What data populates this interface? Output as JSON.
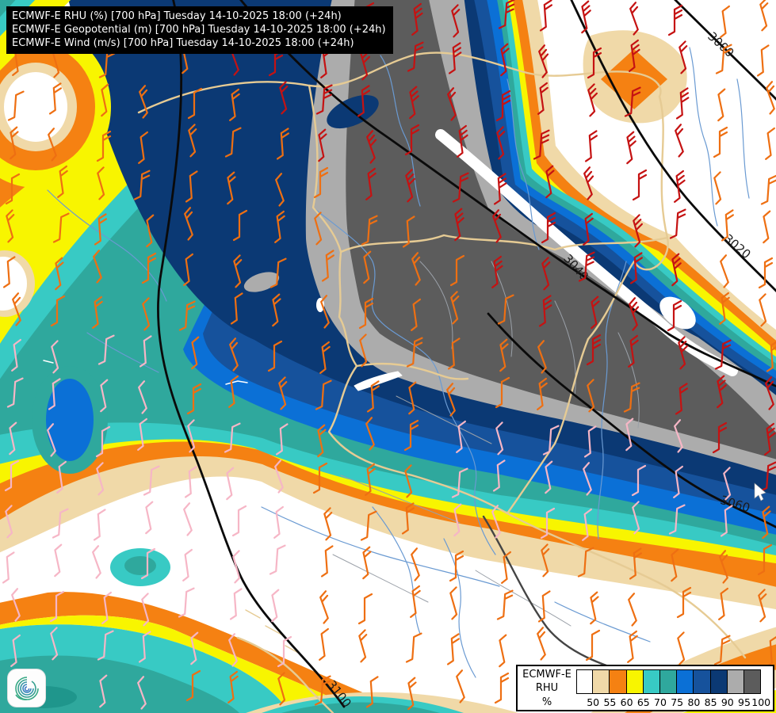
{
  "header": {
    "lines": [
      "ECMWF-E RHU (%) [700 hPa] Tuesday 14-10-2025 18:00 (+24h)",
      "ECMWF-E Geopotential (m) [700 hPa] Tuesday 14-10-2025 18:00 (+24h)",
      "ECMWF-E Wind (m/s) [700 hPa] Tuesday 14-10-2025 18:00 (+24h)"
    ]
  },
  "legend": {
    "title_lines": [
      "ECMWF-E",
      "RHU",
      "%"
    ],
    "tick_labels": [
      "50",
      "55",
      "60",
      "65",
      "70",
      "75",
      "80",
      "85",
      "90",
      "95",
      "100"
    ],
    "swatch_colors": [
      "#FFFFFF",
      "#F0D9A8",
      "#F58112",
      "#F8F500",
      "#38CAC4",
      "#2FA89D",
      "#0B70D6",
      "#16529C",
      "#0B3974",
      "#ACACAC",
      "#5C5C5C"
    ]
  },
  "contours": {
    "labels": [
      "3000",
      "3020",
      "3040",
      "3060",
      "3100"
    ]
  },
  "palette": {
    "white": "#FFFFFF",
    "tan": "#F0D9A8",
    "orange": "#F58112",
    "yellow": "#F8F500",
    "cyan": "#38CAC4",
    "teal": "#2FA89D",
    "tealdark": "#1F968C",
    "blue": "#0B70D6",
    "medblue": "#16529C",
    "navy": "#0B3974",
    "lgray": "#ACACAC",
    "dgray": "#5C5C5C",
    "contour_line": "#0A0A0A",
    "border": "#E6CB94",
    "admin": "#9AA0A8",
    "river": "#6A9AD2"
  },
  "wind": {
    "colors": {
      "strong": "#C51212",
      "moderate": "#EE6F12",
      "light": "#F6B6C6"
    }
  },
  "chart_data": {
    "type": "heatmap",
    "title": "ECMWF-E RHU (%) [700 hPa]",
    "valid_time": "Tuesday 14-10-2025 18:00 (+24h)",
    "units": "%",
    "legend_thresholds": [
      50,
      55,
      60,
      65,
      70,
      75,
      80,
      85,
      90,
      95,
      100
    ],
    "legend_colors": [
      "#FFFFFF",
      "#F0D9A8",
      "#F58112",
      "#F8F500",
      "#38CAC4",
      "#2FA89D",
      "#0B70D6",
      "#16529C",
      "#0B3974",
      "#ACACAC",
      "#5C5C5C"
    ],
    "geopotential_contours_m": [
      3000,
      3020,
      3040,
      3060,
      3100
    ],
    "overlays": [
      "relative humidity fill",
      "geopotential black contours",
      "wind barbs (red strong / orange moderate / pink light)"
    ]
  }
}
